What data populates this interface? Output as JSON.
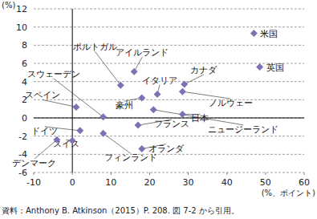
{
  "chart_data": {
    "type": "scatter",
    "y_label": "(%)",
    "x_label": "(%、ポイント)",
    "source": "資料：Anthony B. Atkinson（2015）P. 208. 図 7-2 から引用。",
    "categories": [
      "米国",
      "英国",
      "アイルランド",
      "ポルトガル",
      "カナダ",
      "イタリア",
      "ノルウェー",
      "豪州",
      "日本",
      "ニュージーランド",
      "スウェーデン",
      "スペイン",
      "フランス",
      "ドイツ",
      "スイス",
      "デンマーク",
      "フィンランド",
      "オランダ"
    ],
    "x": [
      47,
      48.5,
      16,
      12.5,
      29,
      22,
      28.5,
      18,
      28.5,
      21,
      8,
      1,
      17,
      2,
      0,
      -4,
      8,
      18
    ],
    "values": [
      9.3,
      5.6,
      5.1,
      3.6,
      3.7,
      2.6,
      2.9,
      2.2,
      0.4,
      0.9,
      0.1,
      1.2,
      -0.8,
      -1.4,
      -2.5,
      -2.4,
      -1.7,
      -3.4
    ],
    "color": "#8071b4",
    "marker": "diamond",
    "xlim": [
      -10,
      60
    ],
    "ylim": [
      -6,
      12
    ],
    "xticks": [
      -10,
      0,
      10,
      20,
      30,
      40,
      50,
      60
    ],
    "yticks": [
      -6,
      -4,
      -2,
      0,
      2,
      4,
      6,
      8,
      10,
      12
    ],
    "grid": true
  }
}
